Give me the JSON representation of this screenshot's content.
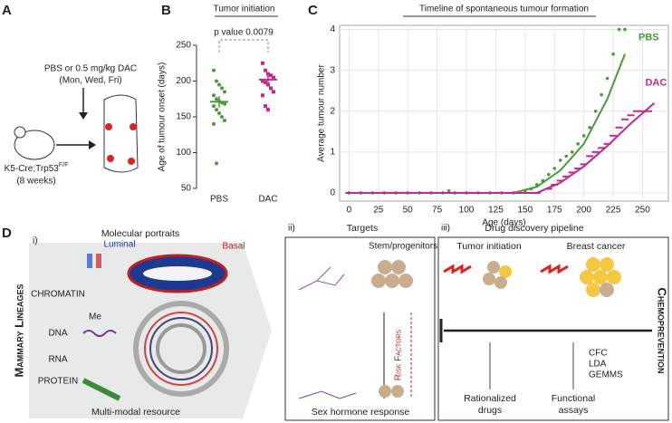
{
  "panel_letters": [
    "A",
    "B",
    "C",
    "D"
  ],
  "panel_a": {
    "treatment": "PBS or 0.5 mg/kg DAC",
    "schedule": "(Mon, Wed, Fri)",
    "mouse_label": "K5-Cre;Trp53",
    "mouse_label_sup": "F/F",
    "age": "(8 weeks)"
  },
  "chart_data": [
    {
      "type": "strip",
      "title": "Tumor initiation",
      "annotation": "p value 0.0079",
      "y_label": "Age of tumour onset (days)",
      "categories": [
        "PBS",
        "DAC"
      ],
      "series": [
        {
          "color": "#4a9a3c",
          "values": [
            215,
            200,
            195,
            190,
            185,
            180,
            175,
            172,
            170,
            168,
            165,
            160,
            155,
            150,
            145,
            140,
            85
          ],
          "mean": 171,
          "error": 8
        },
        {
          "color": "#c6288f",
          "values": [
            225,
            215,
            210,
            208,
            205,
            200,
            198,
            195,
            190,
            185,
            180,
            165,
            160
          ],
          "mean": 202,
          "error": 7
        }
      ],
      "ylim": [
        50,
        250
      ],
      "yticks": [
        50,
        100,
        150,
        200,
        250
      ]
    },
    {
      "type": "scatter",
      "title": "Timeline of spontaneous tumour formation",
      "x_label": "Age (days)",
      "y_label": "Average tumour number",
      "grid": true,
      "series": [
        {
          "name": "PBS",
          "color": "#4a9a3c",
          "marker": "circle",
          "x": [
            0,
            10,
            20,
            30,
            40,
            50,
            60,
            70,
            80,
            85,
            90,
            100,
            110,
            120,
            130,
            140,
            150,
            155,
            160,
            165,
            170,
            175,
            180,
            185,
            190,
            195,
            200,
            205,
            210,
            215,
            220,
            225,
            230,
            235
          ],
          "values": [
            0,
            0,
            0,
            0,
            0,
            0,
            0,
            0,
            0,
            0.05,
            0,
            0,
            0,
            0,
            0,
            0,
            0.05,
            0.1,
            0.2,
            0.3,
            0.45,
            0.6,
            0.8,
            0.9,
            1.0,
            1.2,
            1.4,
            1.6,
            2.0,
            2.4,
            2.8,
            3.4,
            4.0,
            4.0
          ],
          "fit": {
            "x": [
              0,
              140,
              160,
              180,
              200,
              220,
              235
            ],
            "values": [
              0,
              0,
              0.15,
              0.55,
              1.2,
              2.3,
              3.4
            ]
          }
        },
        {
          "name": "DAC",
          "color": "#c6288f",
          "marker": "dash",
          "x": [
            0,
            10,
            20,
            30,
            40,
            50,
            60,
            70,
            80,
            90,
            100,
            110,
            120,
            130,
            140,
            150,
            160,
            170,
            175,
            180,
            185,
            190,
            195,
            200,
            205,
            210,
            215,
            220,
            225,
            230,
            235,
            240,
            245,
            250,
            255
          ],
          "values": [
            0,
            0,
            0,
            0,
            0,
            0,
            0,
            0,
            0,
            0,
            0,
            0,
            0,
            0,
            0,
            0,
            0,
            0.1,
            0.2,
            0.3,
            0.4,
            0.5,
            0.6,
            0.7,
            0.9,
            1.0,
            1.1,
            1.2,
            1.4,
            1.6,
            1.8,
            1.9,
            2.0,
            2.0,
            2.0
          ],
          "fit": {
            "x": [
              0,
              160,
              180,
              200,
              220,
              240,
              260
            ],
            "values": [
              0,
              0,
              0.25,
              0.65,
              1.15,
              1.7,
              2.2
            ]
          }
        }
      ],
      "xlim": [
        -8,
        272
      ],
      "xticks": [
        0,
        25,
        50,
        75,
        100,
        125,
        150,
        175,
        200,
        225,
        250
      ],
      "ylim": [
        -0.2,
        4.1
      ],
      "yticks": [
        0,
        1,
        2,
        3,
        4
      ]
    }
  ],
  "panel_d": {
    "side_label": "Mammary Lineages",
    "right_label": "Chemoprevention",
    "section_i": {
      "number": "i)",
      "title": "Molecular portraits",
      "luminal": "Luminal",
      "basal": "Basal",
      "levels": [
        "CHROMATIN",
        "DNA",
        "RNA",
        "PROTEIN"
      ],
      "methyl": "Me",
      "footer": "Multi-modal resource"
    },
    "section_ii": {
      "number": "ii)",
      "title": "Targets",
      "stem": "Stem/progenitors",
      "risk": "Risk Factors",
      "hormone": "Sex hormone response"
    },
    "section_iii": {
      "number": "iii)",
      "title": "Drug discovery pipeline",
      "initiation": "Tumor initiation",
      "cancer": "Breast cancer",
      "assays_list": [
        "CFC",
        "LDA",
        "GEMMS"
      ],
      "drugs": [
        "Rationalized",
        "drugs"
      ],
      "functional": [
        "Functional",
        "assays"
      ]
    }
  }
}
